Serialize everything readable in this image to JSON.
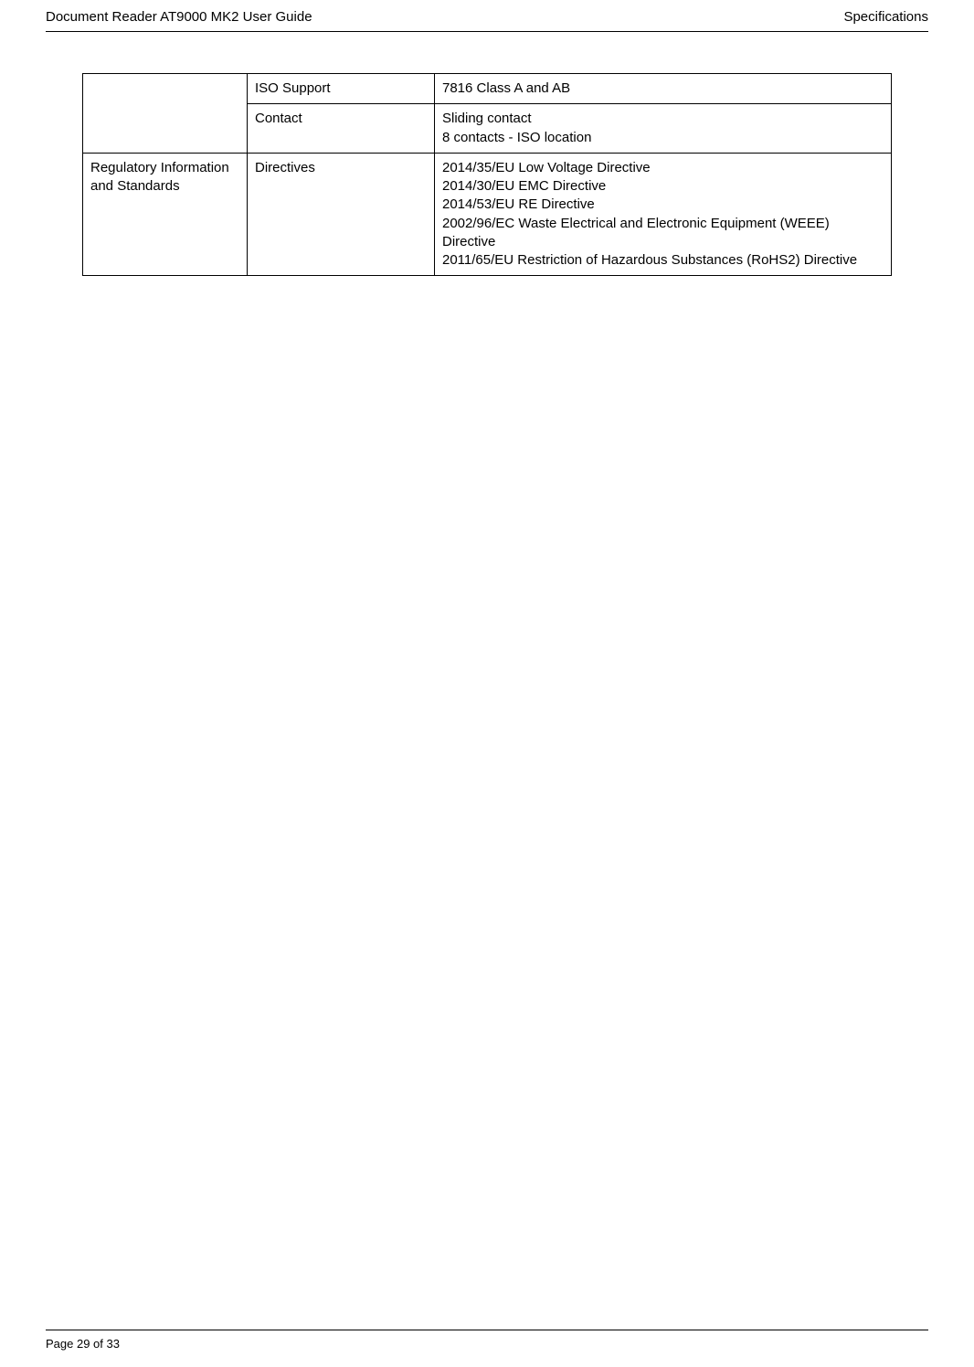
{
  "header": {
    "left": "Document Reader AT9000 MK2 User Guide",
    "right": "Specifications"
  },
  "table": {
    "rows": [
      {
        "category": "",
        "attr": "ISO Support",
        "value": "7816 Class A and AB"
      },
      {
        "category": "",
        "attr": "Contact",
        "value": "Sliding contact\n8 contacts - ISO location"
      },
      {
        "category": "Regulatory Information and Standards",
        "attr": "Directives",
        "value": "2014/35/EU Low Voltage Directive\n2014/30/EU EMC Directive\n2014/53/EU RE Directive\n2002/96/EC Waste Electrical and Electronic Equipment (WEEE) Directive\n2011/65/EU Restriction of Hazardous Substances (RoHS2) Directive"
      }
    ]
  },
  "footer": {
    "page": "Page 29 of 33"
  }
}
